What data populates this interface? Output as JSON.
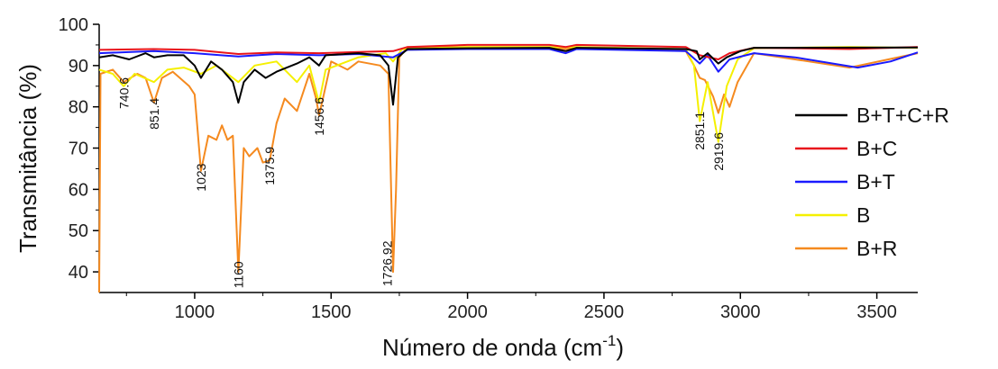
{
  "chart_data": {
    "type": "line",
    "xlabel": "Número de onda (cm",
    "xlabel_sup": "-1",
    "xlabel_close": ")",
    "ylabel": "Transmitância (%)",
    "xlim": [
      650,
      3650
    ],
    "ylim": [
      35,
      100
    ],
    "x_ticks": [
      1000,
      1500,
      2000,
      2500,
      3000,
      3500
    ],
    "y_ticks": [
      40,
      50,
      60,
      70,
      80,
      90,
      100
    ],
    "grid": false,
    "legend_position": "right",
    "series": [
      {
        "name": "B+T+C+R",
        "color": "#000000",
        "points": [
          [
            650,
            92
          ],
          [
            700,
            92.5
          ],
          [
            760,
            91.5
          ],
          [
            820,
            93
          ],
          [
            851,
            92
          ],
          [
            900,
            92.5
          ],
          [
            960,
            92.5
          ],
          [
            1000,
            90
          ],
          [
            1023,
            87
          ],
          [
            1060,
            91
          ],
          [
            1100,
            89
          ],
          [
            1140,
            86
          ],
          [
            1160,
            81
          ],
          [
            1180,
            86
          ],
          [
            1220,
            89
          ],
          [
            1260,
            87
          ],
          [
            1300,
            88.5
          ],
          [
            1375,
            90.5
          ],
          [
            1420,
            92
          ],
          [
            1456,
            90
          ],
          [
            1480,
            92.5
          ],
          [
            1600,
            93
          ],
          [
            1680,
            92.5
          ],
          [
            1710,
            90
          ],
          [
            1727,
            80.5
          ],
          [
            1745,
            92
          ],
          [
            1780,
            94
          ],
          [
            2000,
            94.2
          ],
          [
            2300,
            94.3
          ],
          [
            2360,
            93.5
          ],
          [
            2400,
            94.3
          ],
          [
            2800,
            94
          ],
          [
            2840,
            93.5
          ],
          [
            2851,
            91.5
          ],
          [
            2880,
            93
          ],
          [
            2919,
            90.5
          ],
          [
            2950,
            92
          ],
          [
            3000,
            93.5
          ],
          [
            3050,
            94.3
          ],
          [
            3650,
            94.4
          ]
        ]
      },
      {
        "name": "B+C",
        "color": "#e8141c",
        "points": [
          [
            650,
            93.8
          ],
          [
            850,
            94
          ],
          [
            1000,
            93.8
          ],
          [
            1160,
            92.8
          ],
          [
            1300,
            93.2
          ],
          [
            1456,
            93
          ],
          [
            1600,
            93.3
          ],
          [
            1727,
            93.5
          ],
          [
            1780,
            94.5
          ],
          [
            2000,
            95
          ],
          [
            2300,
            95
          ],
          [
            2360,
            94.5
          ],
          [
            2400,
            95
          ],
          [
            2800,
            94.5
          ],
          [
            2851,
            92.5
          ],
          [
            2919,
            91.5
          ],
          [
            2960,
            93
          ],
          [
            3050,
            94.3
          ],
          [
            3400,
            94
          ],
          [
            3650,
            94.5
          ]
        ]
      },
      {
        "name": "B+T",
        "color": "#1a1aff",
        "points": [
          [
            650,
            93
          ],
          [
            850,
            93.5
          ],
          [
            1000,
            93
          ],
          [
            1160,
            92.2
          ],
          [
            1300,
            92.8
          ],
          [
            1456,
            92.5
          ],
          [
            1600,
            92.8
          ],
          [
            1727,
            92
          ],
          [
            1780,
            93.8
          ],
          [
            2000,
            94
          ],
          [
            2300,
            94
          ],
          [
            2360,
            93
          ],
          [
            2400,
            94
          ],
          [
            2800,
            93.5
          ],
          [
            2851,
            90.5
          ],
          [
            2880,
            92.5
          ],
          [
            2919,
            88.5
          ],
          [
            2960,
            91.5
          ],
          [
            3050,
            93
          ],
          [
            3200,
            92
          ],
          [
            3430,
            89.5
          ],
          [
            3550,
            91
          ],
          [
            3650,
            93.2
          ]
        ]
      },
      {
        "name": "B",
        "color": "#f5f000",
        "points": [
          [
            650,
            89
          ],
          [
            700,
            88
          ],
          [
            740,
            85
          ],
          [
            780,
            88
          ],
          [
            851,
            86
          ],
          [
            900,
            89
          ],
          [
            960,
            89.5
          ],
          [
            1023,
            88
          ],
          [
            1080,
            90
          ],
          [
            1160,
            86
          ],
          [
            1220,
            90
          ],
          [
            1300,
            91
          ],
          [
            1375,
            86
          ],
          [
            1420,
            90
          ],
          [
            1456,
            81
          ],
          [
            1480,
            89
          ],
          [
            1600,
            92
          ],
          [
            1700,
            93
          ],
          [
            1727,
            91
          ],
          [
            1760,
            94
          ],
          [
            2000,
            94.5
          ],
          [
            2300,
            94.5
          ],
          [
            2400,
            94.5
          ],
          [
            2800,
            94
          ],
          [
            2830,
            90
          ],
          [
            2851,
            76.5
          ],
          [
            2880,
            86
          ],
          [
            2919,
            71.5
          ],
          [
            2950,
            85
          ],
          [
            2990,
            91.5
          ],
          [
            3050,
            94.2
          ],
          [
            3400,
            94.5
          ],
          [
            3650,
            94.3
          ]
        ]
      },
      {
        "name": "B+R",
        "color": "#f58a1f",
        "points": [
          [
            650,
            35
          ],
          [
            655,
            88
          ],
          [
            700,
            89
          ],
          [
            740,
            86
          ],
          [
            790,
            88
          ],
          [
            820,
            87
          ],
          [
            851,
            81
          ],
          [
            880,
            87
          ],
          [
            920,
            88.5
          ],
          [
            980,
            85
          ],
          [
            1000,
            83
          ],
          [
            1023,
            64.5
          ],
          [
            1050,
            73
          ],
          [
            1080,
            72
          ],
          [
            1100,
            75.5
          ],
          [
            1120,
            72
          ],
          [
            1140,
            73
          ],
          [
            1160,
            40
          ],
          [
            1180,
            70
          ],
          [
            1200,
            68
          ],
          [
            1230,
            70
          ],
          [
            1250,
            66.5
          ],
          [
            1275,
            67
          ],
          [
            1300,
            76
          ],
          [
            1330,
            82
          ],
          [
            1375,
            79
          ],
          [
            1400,
            84
          ],
          [
            1420,
            88
          ],
          [
            1445,
            82
          ],
          [
            1456,
            78
          ],
          [
            1470,
            82
          ],
          [
            1500,
            91
          ],
          [
            1560,
            89
          ],
          [
            1600,
            91
          ],
          [
            1680,
            90
          ],
          [
            1710,
            88
          ],
          [
            1727,
            40
          ],
          [
            1738,
            60
          ],
          [
            1750,
            92
          ],
          [
            1780,
            94.5
          ],
          [
            2000,
            94.5
          ],
          [
            2300,
            94.5
          ],
          [
            2360,
            94
          ],
          [
            2400,
            94.5
          ],
          [
            2800,
            93.5
          ],
          [
            2830,
            90
          ],
          [
            2851,
            87
          ],
          [
            2870,
            86.5
          ],
          [
            2900,
            82.5
          ],
          [
            2919,
            78.5
          ],
          [
            2940,
            83
          ],
          [
            2960,
            80
          ],
          [
            2990,
            86
          ],
          [
            3050,
            93
          ],
          [
            3400,
            89.5
          ],
          [
            3650,
            93
          ]
        ]
      }
    ],
    "annotations": [
      {
        "text": "740.6",
        "x": 740.6,
        "y": 79.5
      },
      {
        "text": "851.4",
        "x": 851.4,
        "y": 74.5
      },
      {
        "text": "1023",
        "x": 1023,
        "y": 59.5
      },
      {
        "text": "1160",
        "x": 1160,
        "y": 36
      },
      {
        "text": "1375.9",
        "x": 1275,
        "y": 61
      },
      {
        "text": "1456.6",
        "x": 1456.6,
        "y": 73
      },
      {
        "text": "1726.92",
        "x": 1705,
        "y": 36.5
      },
      {
        "text": "2851.1",
        "x": 2851.1,
        "y": 69.5
      },
      {
        "text": "2919.6",
        "x": 2919.6,
        "y": 64.5
      }
    ]
  }
}
